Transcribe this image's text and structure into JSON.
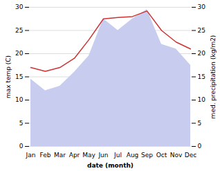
{
  "chart_data": {
    "type": "line",
    "categories": [
      "Jan",
      "Feb",
      "Mar",
      "Apr",
      "May",
      "Jun",
      "Jul",
      "Aug",
      "Sep",
      "Oct",
      "Nov",
      "Dec"
    ],
    "series": [
      {
        "type": "area",
        "color": "#c8ccee",
        "axis": "y2",
        "values": [
          14.5,
          12.0,
          13.0,
          16.0,
          19.5,
          27.5,
          25.0,
          27.5,
          29.5,
          22.0,
          21.0,
          17.5
        ]
      },
      {
        "type": "line",
        "color": "#cc3333",
        "values": [
          17.0,
          16.2,
          17.0,
          19.0,
          23.0,
          27.5,
          27.8,
          28.0,
          29.2,
          25.0,
          22.5,
          21.0
        ]
      }
    ],
    "xlabel": "date (month)",
    "ylabel": "max temp (C)",
    "y2label": "med. precipitation (kg/m2)",
    "ylim": [
      0,
      30
    ],
    "yticks": [
      0,
      5,
      10,
      15,
      20,
      25,
      30
    ],
    "y2lim": [
      0,
      30
    ],
    "y2ticks": [
      0,
      5,
      10,
      15,
      20,
      25,
      30
    ],
    "grid": true
  }
}
